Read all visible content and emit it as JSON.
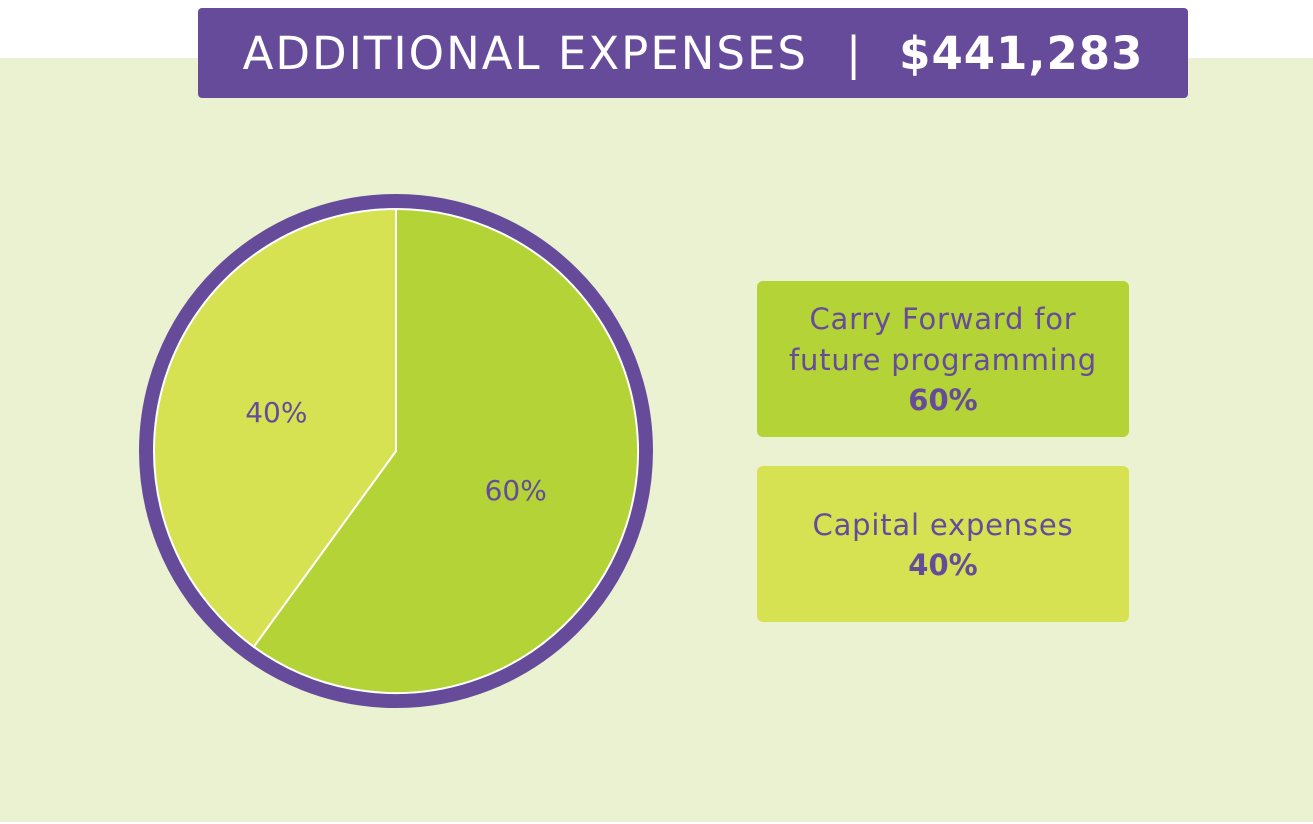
{
  "header": {
    "title": "ADDITIONAL EXPENSES",
    "separator": "|",
    "total": "$441,283"
  },
  "colors": {
    "background": "#EBF2D2",
    "header": "#674B9B",
    "ring": "#674B9B",
    "slice_carry_forward": "#B3D336",
    "slice_capital": "#D6E251",
    "text": "#674B9B"
  },
  "chart_data": {
    "type": "pie",
    "title": "ADDITIONAL EXPENSES",
    "total": "$441,283",
    "slices": [
      {
        "name": "Carry Forward for future programming",
        "value": 60,
        "label": "60%",
        "color": "#B3D336"
      },
      {
        "name": "Capital expenses",
        "value": 40,
        "label": "40%",
        "color": "#D6E251"
      }
    ],
    "legend": [
      {
        "line1": "Carry Forward for",
        "line2": "future programming",
        "pct": "60%"
      },
      {
        "line1": "Capital expenses",
        "line2": "",
        "pct": "40%"
      }
    ]
  }
}
